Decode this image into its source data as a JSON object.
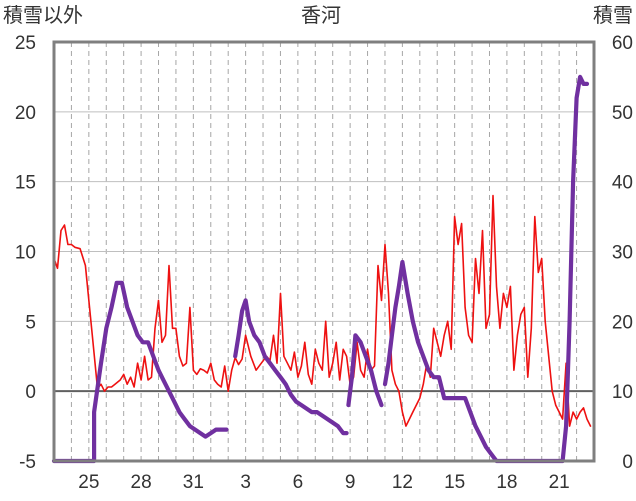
{
  "chart_data": {
    "type": "line",
    "title": "香河",
    "left_axis_label": "積雪以外",
    "right_axis_label": "積雪",
    "left_ylim": [
      -5,
      25
    ],
    "right_ylim": [
      0,
      60
    ],
    "left_ticks": [
      "25",
      "20",
      "15",
      "10",
      "5",
      "0",
      "-5"
    ],
    "right_ticks": [
      "60",
      "50",
      "40",
      "30",
      "20",
      "10",
      "0"
    ],
    "x_range": [
      23,
      54
    ],
    "x_ticks": [
      {
        "x": 25,
        "label": "25"
      },
      {
        "x": 28,
        "label": "28"
      },
      {
        "x": 31,
        "label": "31"
      },
      {
        "x": 34,
        "label": "3"
      },
      {
        "x": 37,
        "label": "6"
      },
      {
        "x": 40,
        "label": "9"
      },
      {
        "x": 43,
        "label": "12"
      },
      {
        "x": 46,
        "label": "15"
      },
      {
        "x": 49,
        "label": "18"
      },
      {
        "x": 52,
        "label": "21"
      }
    ],
    "grid_vertical": "dashed",
    "grid_horizontal": "solid",
    "colors": {
      "red": "#ee1111",
      "purple": "#7030a0",
      "frame": "#7f7f7f",
      "grid": "#bfbfbf"
    },
    "series": [
      {
        "axis": "left",
        "color": "#ee1111",
        "width": 1.6,
        "x": [
          23.0,
          23.2,
          23.4,
          23.6,
          23.8,
          24.0,
          24.2,
          24.5,
          24.8,
          25.2,
          25.5,
          25.7,
          25.9,
          26.1,
          26.3,
          26.5,
          26.8,
          27.0,
          27.2,
          27.4,
          27.6,
          27.8,
          28.0,
          28.2,
          28.4,
          28.6,
          28.8,
          29.0,
          29.2,
          29.4,
          29.6,
          29.8,
          30.0,
          30.2,
          30.4,
          30.6,
          30.8,
          31.0,
          31.2,
          31.4,
          31.6,
          31.8,
          32.0,
          32.2,
          32.4,
          32.6,
          32.8,
          33.0,
          33.2,
          33.4,
          33.6,
          33.8,
          34.0,
          34.3,
          34.6,
          34.9,
          35.2,
          35.4,
          35.6,
          35.8,
          36.0,
          36.2,
          36.4,
          36.6,
          36.8,
          37.0,
          37.2,
          37.4,
          37.6,
          37.8,
          38.0,
          38.2,
          38.4,
          38.6,
          38.8,
          39.0,
          39.2,
          39.4,
          39.6,
          39.8,
          40.0,
          40.2,
          40.4,
          40.6,
          40.8,
          41.0,
          41.2,
          41.4,
          41.6,
          41.8,
          42.0,
          42.2,
          42.4,
          42.6,
          42.8,
          43.0,
          43.2,
          43.4,
          43.6,
          43.8,
          44.0,
          44.2,
          44.4,
          44.6,
          44.8,
          45.0,
          45.2,
          45.4,
          45.6,
          45.8,
          46.0,
          46.2,
          46.4,
          46.6,
          46.8,
          47.0,
          47.2,
          47.4,
          47.6,
          47.8,
          48.0,
          48.2,
          48.4,
          48.6,
          48.8,
          49.0,
          49.2,
          49.4,
          49.6,
          49.8,
          50.0,
          50.2,
          50.4,
          50.6,
          50.8,
          51.0,
          51.2,
          51.4,
          51.6,
          51.8,
          52.0,
          52.2,
          52.4,
          52.6,
          52.8,
          53.0,
          53.2,
          53.4,
          53.6,
          53.8
        ],
        "y": [
          9.5,
          8.8,
          11.5,
          11.9,
          10.5,
          10.5,
          10.3,
          10.2,
          9.0,
          4.0,
          0.2,
          0.5,
          0.0,
          0.3,
          0.3,
          0.5,
          0.8,
          1.2,
          0.5,
          1.0,
          0.3,
          2.0,
          0.8,
          2.5,
          0.8,
          1.0,
          4.5,
          6.5,
          3.5,
          4.0,
          9.0,
          4.5,
          4.5,
          2.5,
          1.8,
          2.0,
          6.0,
          1.5,
          1.2,
          1.6,
          1.5,
          1.3,
          2.0,
          0.8,
          0.5,
          0.3,
          1.8,
          0.0,
          1.5,
          2.4,
          1.9,
          2.3,
          4.0,
          2.5,
          1.5,
          2.0,
          2.5,
          2.2,
          4.0,
          2.0,
          7.0,
          2.5,
          2.0,
          1.5,
          2.8,
          1.0,
          1.8,
          3.5,
          1.2,
          0.5,
          3.0,
          2.0,
          1.5,
          5.0,
          1.0,
          2.0,
          3.5,
          0.8,
          3.0,
          2.5,
          0.5,
          1.0,
          3.5,
          1.5,
          1.0,
          3.0,
          1.5,
          1.8,
          9.0,
          6.5,
          10.5,
          7.0,
          1.5,
          0.5,
          0.0,
          -1.5,
          -2.5,
          -2.0,
          -1.5,
          -1.0,
          -0.5,
          0.5,
          2.0,
          1.0,
          4.5,
          3.5,
          2.5,
          4.0,
          5.0,
          3.0,
          12.5,
          10.5,
          12.0,
          6.0,
          4.0,
          3.5,
          9.5,
          7.0,
          11.5,
          4.5,
          5.5,
          14.0,
          7.5,
          4.5,
          7.0,
          6.0,
          7.5,
          1.5,
          4.0,
          5.5,
          6.0,
          1.0,
          4.5,
          12.5,
          8.5,
          9.5,
          5.0,
          2.5,
          0.0,
          -1.0,
          -1.5,
          -2.0,
          2.0,
          -2.5,
          -1.5,
          -2.0,
          -1.5,
          -1.2,
          -2.0,
          -2.5
        ]
      },
      {
        "axis": "right",
        "color": "#7030a0",
        "width": 4.2,
        "segments": [
          {
            "x": [
              23.0,
              25.3,
              25.3,
              25.7,
              26.0,
              26.3,
              26.6,
              26.9,
              27.2,
              27.5,
              27.8,
              28.1,
              28.4,
              28.7,
              29.0,
              29.3,
              29.6,
              29.9,
              30.2,
              30.5,
              30.8,
              31.1,
              31.4,
              31.7,
              32.0,
              32.3,
              32.6,
              32.9
            ],
            "y": [
              0,
              0,
              7.0,
              14.0,
              19.0,
              22.0,
              25.5,
              25.5,
              22.0,
              20.0,
              18.0,
              17.0,
              17.0,
              15.0,
              13.0,
              11.5,
              10.0,
              8.5,
              7.0,
              6.0,
              5.0,
              4.5,
              4.0,
              3.5,
              4.0,
              4.5,
              4.5,
              4.5
            ]
          },
          {
            "x": [
              33.4,
              33.6,
              33.8,
              34.0,
              34.2,
              34.5,
              34.8,
              35.1,
              35.4,
              35.7,
              36.0,
              36.3,
              36.6,
              36.9,
              37.2,
              37.5,
              37.8,
              38.1,
              38.4,
              38.7,
              39.0,
              39.3,
              39.6,
              39.8
            ],
            "y": [
              15.0,
              18.0,
              21.5,
              23.0,
              20.0,
              18.0,
              17.0,
              15.0,
              14.0,
              13.0,
              12.0,
              11.0,
              9.5,
              8.5,
              8.0,
              7.5,
              7.0,
              7.0,
              6.5,
              6.0,
              5.5,
              5.0,
              4.0,
              4.0
            ]
          },
          {
            "x": [
              39.9,
              40.1,
              40.3,
              40.6,
              40.9,
              41.2,
              41.5,
              41.8
            ],
            "y": [
              8.0,
              12.0,
              18.0,
              17.0,
              15.0,
              13.0,
              10.0,
              8.0
            ]
          },
          {
            "x": [
              42.0,
              42.2,
              42.4,
              42.6,
              42.8,
              43.0,
              43.3,
              43.6,
              43.9,
              44.2,
              44.5,
              44.8,
              45.1,
              45.4,
              45.7,
              46.0,
              46.3,
              46.6,
              46.9,
              47.2,
              47.5,
              47.8,
              48.1,
              48.4,
              48.7,
              49.0,
              49.3,
              49.6,
              49.9,
              50.2,
              50.5,
              50.8,
              51.1,
              51.4,
              51.7,
              52.0,
              52.2,
              52.4,
              52.6,
              52.8,
              53.0,
              53.2,
              53.4,
              53.6
            ],
            "y": [
              11.0,
              14.0,
              18.0,
              22.0,
              25.0,
              28.5,
              24.0,
              20.0,
              17.0,
              15.0,
              13.0,
              12.0,
              12.0,
              9.0,
              9.0,
              9.0,
              9.0,
              9.0,
              7.0,
              5.0,
              3.5,
              2.0,
              1.0,
              0.0,
              0.0,
              0.0,
              0.0,
              0.0,
              0.0,
              0.0,
              0.0,
              0.0,
              0.0,
              0.0,
              0.0,
              0.0,
              0.0,
              5.0,
              20.0,
              40.0,
              52.0,
              55.0,
              54.0,
              54.0
            ]
          }
        ]
      }
    ]
  }
}
